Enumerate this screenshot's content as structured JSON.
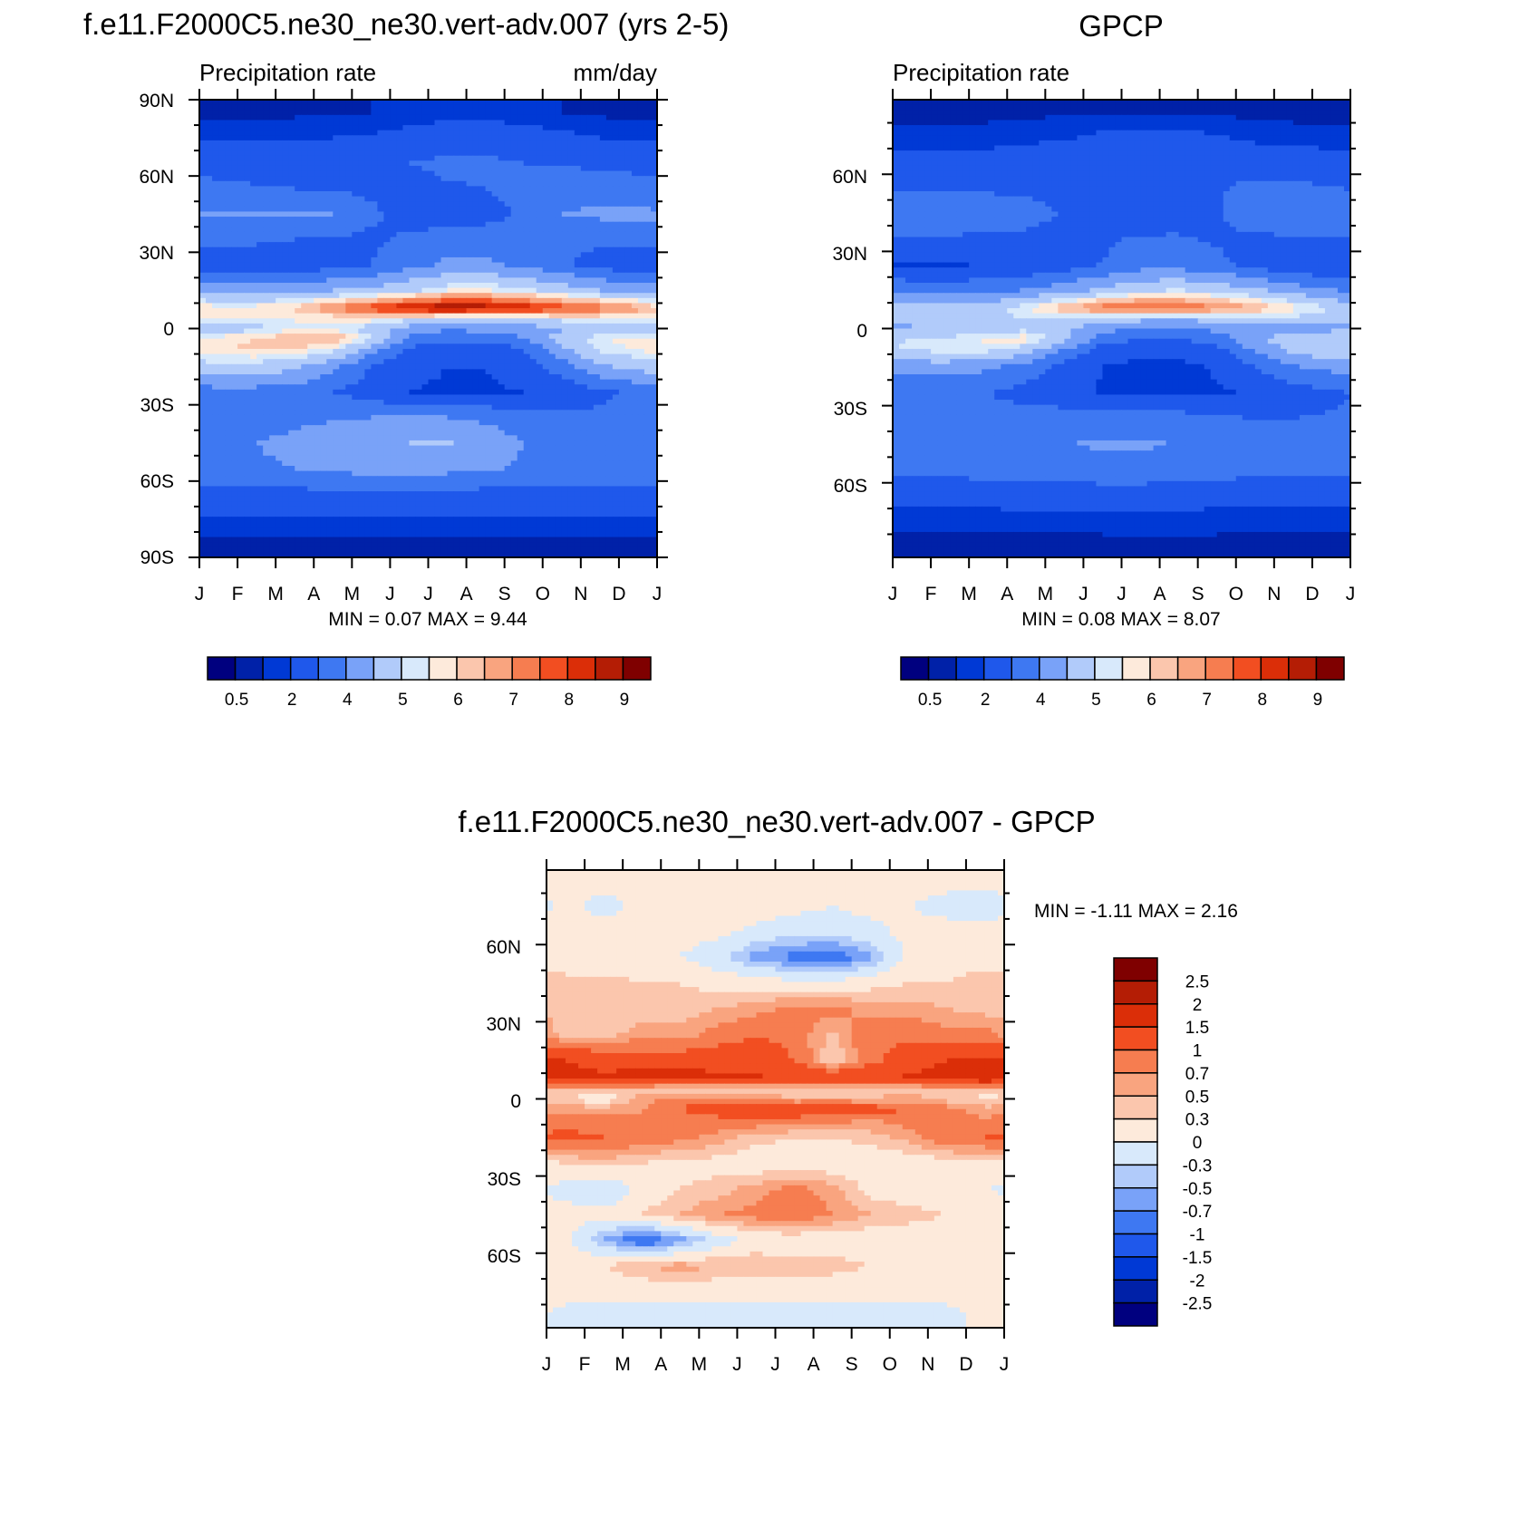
{
  "colors": {
    "precip_palette": [
      "#00007f",
      "#0021a8",
      "#0039d5",
      "#1f58eb",
      "#3e78f2",
      "#79a2f8",
      "#b1cbfa",
      "#d8e9fb",
      "#fdeadb",
      "#fbc6ad",
      "#f9a47f",
      "#f67d50",
      "#f24e21",
      "#db2e08",
      "#b41d05",
      "#7f0000"
    ],
    "diff_palette": [
      "#00007f",
      "#0021a8",
      "#0039d5",
      "#1f58eb",
      "#3e78f2",
      "#79a2f8",
      "#b1cbfa",
      "#d8e9fb",
      "#fdeadb",
      "#fbc6ad",
      "#f9a47f",
      "#f67d50",
      "#f24e21",
      "#db2e08",
      "#b41d05",
      "#7f0000"
    ]
  },
  "panels": {
    "model": {
      "title": "f.e11.F2000C5.ne30_ne30.vert-adv.007 (yrs 2-5)",
      "left_label": "Precipitation rate",
      "right_label": "mm/day",
      "y_ticks": [
        "90N",
        "60N",
        "30N",
        "0",
        "30S",
        "60S",
        "90S"
      ],
      "x_ticks": [
        "J",
        "F",
        "M",
        "A",
        "M",
        "J",
        "J",
        "A",
        "S",
        "O",
        "N",
        "D",
        "J"
      ],
      "min_max": "MIN =   0.07 MAX =   9.44",
      "colorbar_labels": [
        "0.5",
        "2",
        "4",
        "5",
        "6",
        "7",
        "8",
        "9"
      ]
    },
    "obs": {
      "title": "GPCP",
      "left_label": "Precipitation rate",
      "y_ticks": [
        "60N",
        "30N",
        "0",
        "30S",
        "60S"
      ],
      "x_ticks": [
        "J",
        "F",
        "M",
        "A",
        "M",
        "J",
        "J",
        "A",
        "S",
        "O",
        "N",
        "D",
        "J"
      ],
      "min_max": "MIN =   0.08 MAX =   8.07",
      "colorbar_labels": [
        "0.5",
        "2",
        "4",
        "5",
        "6",
        "7",
        "8",
        "9"
      ]
    },
    "diff": {
      "title": "f.e11.F2000C5.ne30_ne30.vert-adv.007 - GPCP",
      "y_ticks": [
        "60N",
        "30N",
        "0",
        "30S",
        "60S"
      ],
      "x_ticks": [
        "J",
        "F",
        "M",
        "A",
        "M",
        "J",
        "J",
        "A",
        "S",
        "O",
        "N",
        "D",
        "J"
      ],
      "min_max": "MIN =  -1.11 MAX =   2.16",
      "colorbar_labels": [
        "2.5",
        "2",
        "1.5",
        "1",
        "0.7",
        "0.5",
        "0.3",
        "0",
        "-0.3",
        "-0.5",
        "-0.7",
        "-1",
        "-1.5",
        "-2",
        "-2.5"
      ]
    }
  },
  "chart_data": [
    {
      "type": "heatmap",
      "title": "f.e11.F2000C5.ne30_ne30.vert-adv.007 (yrs 2-5)",
      "subtitle": "Precipitation rate",
      "units": "mm/day",
      "xlabel": "",
      "ylabel": "",
      "x": [
        "J",
        "F",
        "M",
        "A",
        "M",
        "J",
        "J",
        "A",
        "S",
        "O",
        "N",
        "D",
        "J"
      ],
      "ylim": [
        -90,
        90
      ],
      "min": 0.07,
      "max": 9.44,
      "levels": [
        0.2,
        0.5,
        1,
        2,
        3,
        4,
        5,
        5.5,
        6,
        6.5,
        7,
        7.5,
        8,
        8.5,
        9
      ],
      "note_levels_labeled": [
        "0.5",
        "2",
        "4",
        "5",
        "6",
        "7",
        "8",
        "9"
      ],
      "rows_lat": [
        85,
        75,
        65,
        55,
        45,
        35,
        25,
        15,
        8,
        4,
        0,
        -4,
        -8,
        -15,
        -25,
        -35,
        -45,
        -55,
        -65,
        -75,
        -85
      ],
      "values": [
        [
          0.3,
          0.3,
          0.4,
          0.4,
          0.5,
          0.6,
          0.7,
          0.7,
          0.6,
          0.5,
          0.4,
          0.3
        ],
        [
          0.9,
          0.9,
          0.9,
          1.0,
          1.1,
          1.3,
          1.6,
          1.6,
          1.4,
          1.2,
          1.0,
          0.9
        ],
        [
          1.6,
          1.5,
          1.5,
          1.6,
          1.8,
          2.0,
          2.2,
          2.2,
          2.0,
          1.9,
          1.8,
          1.7
        ],
        [
          2.2,
          2.1,
          2.0,
          1.9,
          1.8,
          1.7,
          1.9,
          2.0,
          2.3,
          2.6,
          2.6,
          2.4
        ],
        [
          3.1,
          3.1,
          3.2,
          3.0,
          2.2,
          1.5,
          1.4,
          1.6,
          2.2,
          3.0,
          3.2,
          3.2
        ],
        [
          2.4,
          2.2,
          2.0,
          1.9,
          1.8,
          2.2,
          2.5,
          2.6,
          2.4,
          2.1,
          2.2,
          2.4
        ],
        [
          1.2,
          1.2,
          1.4,
          1.6,
          2.0,
          2.7,
          3.2,
          3.2,
          2.8,
          2.2,
          1.6,
          1.3
        ],
        [
          3.5,
          3.6,
          3.7,
          4.0,
          4.3,
          4.8,
          5.5,
          5.6,
          5.2,
          4.6,
          4.0,
          3.7
        ],
        [
          5.6,
          5.8,
          6.2,
          7.2,
          8.0,
          8.8,
          9.2,
          9.0,
          8.6,
          8.0,
          7.5,
          6.8
        ],
        [
          5.5,
          5.4,
          5.5,
          5.6,
          5.8,
          5.3,
          4.8,
          4.7,
          5.0,
          5.4,
          5.5,
          5.5
        ],
        [
          4.4,
          4.8,
          5.5,
          5.4,
          4.6,
          3.5,
          3.2,
          3.3,
          3.5,
          3.8,
          4.0,
          4.2
        ],
        [
          5.8,
          6.0,
          6.5,
          6.7,
          5.0,
          2.8,
          2.2,
          2.3,
          3.0,
          4.5,
          5.5,
          5.7
        ],
        [
          5.9,
          6.2,
          6.0,
          5.3,
          3.5,
          1.8,
          1.4,
          1.4,
          2.0,
          3.8,
          5.2,
          5.6
        ],
        [
          4.8,
          4.6,
          4.2,
          3.2,
          2.0,
          1.2,
          1.0,
          1.0,
          1.3,
          2.5,
          3.8,
          4.4
        ],
        [
          2.7,
          2.6,
          2.5,
          2.0,
          1.5,
          1.0,
          0.9,
          0.9,
          1.0,
          1.3,
          1.8,
          2.2
        ],
        [
          2.6,
          2.6,
          2.8,
          2.9,
          3.0,
          3.0,
          3.0,
          2.8,
          2.4,
          2.2,
          2.2,
          2.3
        ],
        [
          2.9,
          3.0,
          3.2,
          3.5,
          3.7,
          4.0,
          4.1,
          3.6,
          3.0,
          2.7,
          2.7,
          2.8
        ],
        [
          2.8,
          2.9,
          3.0,
          3.2,
          3.4,
          3.4,
          3.3,
          3.1,
          2.9,
          2.8,
          2.7,
          2.7
        ],
        [
          1.7,
          1.7,
          1.7,
          1.8,
          1.8,
          1.8,
          1.8,
          1.7,
          1.7,
          1.6,
          1.6,
          1.6
        ],
        [
          0.9,
          0.9,
          0.9,
          0.9,
          0.9,
          0.9,
          0.9,
          0.9,
          0.9,
          0.9,
          0.9,
          0.9
        ],
        [
          0.3,
          0.3,
          0.3,
          0.3,
          0.3,
          0.3,
          0.3,
          0.3,
          0.3,
          0.3,
          0.3,
          0.3
        ]
      ]
    },
    {
      "type": "heatmap",
      "title": "GPCP",
      "subtitle": "Precipitation rate",
      "xlabel": "",
      "ylabel": "",
      "x": [
        "J",
        "F",
        "M",
        "A",
        "M",
        "J",
        "J",
        "A",
        "S",
        "O",
        "N",
        "D",
        "J"
      ],
      "ylim": [
        -89,
        89
      ],
      "min": 0.08,
      "max": 8.07,
      "levels": [
        0.2,
        0.5,
        1,
        2,
        3,
        4,
        5,
        5.5,
        6,
        6.5,
        7,
        7.5,
        8,
        8.5,
        9
      ],
      "note_levels_labeled": [
        "0.5",
        "2",
        "4",
        "5",
        "6",
        "7",
        "8",
        "9"
      ],
      "rows_lat": [
        85,
        75,
        65,
        55,
        45,
        35,
        25,
        15,
        8,
        4,
        0,
        -4,
        -8,
        -15,
        -25,
        -35,
        -45,
        -55,
        -65,
        -75,
        -85
      ],
      "values": [
        [
          0.3,
          0.3,
          0.3,
          0.3,
          0.4,
          0.4,
          0.4,
          0.4,
          0.4,
          0.3,
          0.3,
          0.3
        ],
        [
          0.7,
          0.7,
          0.7,
          0.8,
          0.9,
          1.1,
          1.2,
          1.2,
          1.0,
          0.8,
          0.7,
          0.7
        ],
        [
          1.3,
          1.3,
          1.3,
          1.4,
          1.5,
          1.6,
          1.7,
          1.7,
          1.6,
          1.5,
          1.4,
          1.3
        ],
        [
          1.8,
          1.8,
          1.8,
          1.8,
          1.6,
          1.4,
          1.4,
          1.6,
          1.9,
          2.2,
          2.2,
          2.0
        ],
        [
          2.8,
          2.7,
          2.6,
          2.4,
          1.9,
          1.5,
          1.4,
          1.5,
          1.9,
          2.6,
          2.9,
          2.9
        ],
        [
          2.0,
          1.9,
          1.8,
          1.8,
          1.7,
          1.9,
          2.1,
          2.1,
          1.9,
          1.8,
          1.9,
          2.0
        ],
        [
          0.9,
          0.9,
          1.0,
          1.2,
          1.5,
          2.0,
          2.5,
          2.5,
          2.2,
          1.6,
          1.2,
          1.0
        ],
        [
          2.6,
          2.6,
          2.7,
          3.0,
          3.5,
          4.2,
          4.8,
          5.0,
          4.7,
          4.1,
          3.5,
          3.0
        ],
        [
          4.2,
          4.3,
          4.6,
          5.5,
          6.5,
          7.4,
          7.8,
          7.6,
          7.2,
          6.6,
          5.8,
          4.9
        ],
        [
          4.6,
          4.5,
          4.7,
          5.0,
          5.2,
          4.8,
          4.3,
          4.2,
          4.4,
          4.7,
          4.8,
          4.7
        ],
        [
          3.8,
          4.1,
          4.6,
          4.8,
          4.2,
          3.3,
          3.0,
          3.0,
          3.2,
          3.4,
          3.6,
          3.7
        ],
        [
          5.0,
          5.2,
          5.6,
          5.8,
          4.4,
          2.6,
          2.0,
          2.0,
          2.6,
          3.8,
          4.6,
          4.9
        ],
        [
          5.1,
          5.4,
          5.3,
          4.6,
          3.0,
          1.6,
          1.2,
          1.2,
          1.7,
          3.2,
          4.4,
          4.8
        ],
        [
          3.5,
          3.4,
          3.2,
          2.5,
          1.6,
          1.0,
          0.8,
          0.8,
          1.1,
          2.0,
          2.9,
          3.3
        ],
        [
          2.2,
          2.1,
          2.0,
          1.7,
          1.3,
          0.9,
          0.8,
          0.8,
          0.9,
          1.1,
          1.5,
          1.8
        ],
        [
          2.2,
          2.2,
          2.3,
          2.4,
          2.5,
          2.5,
          2.5,
          2.4,
          2.1,
          2.0,
          2.0,
          2.1
        ],
        [
          2.3,
          2.4,
          2.6,
          2.8,
          3.0,
          3.1,
          3.1,
          3.0,
          2.7,
          2.4,
          2.3,
          2.3
        ],
        [
          2.2,
          2.3,
          2.4,
          2.5,
          2.6,
          2.7,
          2.7,
          2.6,
          2.4,
          2.3,
          2.2,
          2.2
        ],
        [
          1.3,
          1.3,
          1.3,
          1.4,
          1.4,
          1.4,
          1.4,
          1.4,
          1.3,
          1.3,
          1.3,
          1.3
        ],
        [
          0.7,
          0.7,
          0.7,
          0.7,
          0.7,
          0.7,
          0.7,
          0.7,
          0.7,
          0.7,
          0.7,
          0.7
        ],
        [
          0.3,
          0.3,
          0.3,
          0.3,
          0.3,
          0.3,
          0.4,
          0.4,
          0.3,
          0.3,
          0.3,
          0.3
        ]
      ]
    },
    {
      "type": "heatmap",
      "title": "f.e11.F2000C5.ne30_ne30.vert-adv.007 - GPCP",
      "xlabel": "",
      "ylabel": "",
      "x": [
        "J",
        "F",
        "M",
        "A",
        "M",
        "J",
        "J",
        "A",
        "S",
        "O",
        "N",
        "D",
        "J"
      ],
      "ylim": [
        -89,
        89
      ],
      "min": -1.11,
      "max": 2.16,
      "levels": [
        -2.5,
        -2,
        -1.5,
        -1,
        -0.7,
        -0.5,
        -0.3,
        0,
        0.3,
        0.5,
        0.7,
        1,
        1.5,
        2,
        2.5
      ],
      "rows_lat": [
        85,
        75,
        65,
        55,
        45,
        35,
        25,
        15,
        8,
        4,
        0,
        -4,
        -8,
        -15,
        -25,
        -35,
        -45,
        -55,
        -65,
        -75,
        -85
      ],
      "values": [
        [
          0.1,
          0.1,
          0.1,
          0.1,
          0.2,
          0.2,
          0.1,
          0.1,
          0.1,
          0.1,
          0.1,
          0.1
        ],
        [
          0.1,
          -0.1,
          0.1,
          0.1,
          0.1,
          0.2,
          0.1,
          0.0,
          0.1,
          0.0,
          -0.1,
          -0.2
        ],
        [
          0.1,
          0.1,
          0.1,
          0.1,
          0.1,
          -0.1,
          -0.2,
          -0.2,
          -0.1,
          0.1,
          0.1,
          0.1
        ],
        [
          0.1,
          0.1,
          0.1,
          0.0,
          -0.2,
          -0.6,
          -0.8,
          -0.9,
          -0.6,
          0.1,
          0.1,
          0.1
        ],
        [
          0.4,
          0.4,
          0.3,
          0.3,
          0.2,
          0.2,
          0.1,
          0.1,
          0.2,
          0.3,
          0.3,
          0.5
        ],
        [
          0.5,
          0.4,
          0.4,
          0.4,
          0.5,
          0.6,
          0.8,
          0.8,
          0.6,
          0.6,
          0.5,
          0.4
        ],
        [
          0.4,
          0.4,
          0.6,
          0.6,
          0.8,
          1.0,
          0.9,
          0.4,
          1.0,
          0.9,
          0.8,
          0.8
        ],
        [
          1.5,
          1.3,
          1.2,
          1.2,
          1.3,
          1.2,
          1.0,
          0.3,
          0.9,
          1.2,
          1.5,
          1.6
        ],
        [
          1.7,
          1.6,
          1.8,
          1.8,
          1.6,
          1.6,
          1.4,
          1.4,
          1.4,
          1.6,
          1.8,
          1.9
        ],
        [
          0.5,
          0.5,
          0.4,
          0.3,
          0.3,
          0.4,
          0.4,
          0.4,
          0.4,
          0.4,
          0.4,
          0.5
        ],
        [
          0.3,
          0.1,
          0.6,
          0.8,
          0.8,
          0.6,
          0.5,
          0.5,
          0.5,
          0.6,
          0.4,
          0.2
        ],
        [
          0.6,
          0.6,
          0.7,
          1.0,
          1.3,
          1.4,
          1.3,
          1.4,
          1.2,
          1.0,
          0.8,
          0.6
        ],
        [
          0.9,
          0.8,
          0.7,
          0.8,
          0.9,
          0.9,
          0.9,
          0.8,
          0.7,
          0.8,
          0.8,
          0.7
        ],
        [
          1.1,
          1.0,
          0.9,
          0.8,
          0.6,
          0.4,
          0.3,
          0.3,
          0.4,
          0.6,
          0.9,
          1.0
        ],
        [
          0.3,
          0.4,
          0.3,
          0.2,
          0.2,
          0.1,
          0.1,
          0.1,
          0.1,
          0.1,
          0.2,
          0.2
        ],
        [
          -0.1,
          -0.3,
          0.1,
          0.3,
          0.4,
          0.6,
          0.8,
          0.6,
          0.2,
          0.1,
          0.1,
          0.0
        ],
        [
          0.1,
          0.1,
          0.3,
          0.5,
          0.7,
          0.8,
          0.9,
          0.7,
          0.5,
          0.4,
          0.3,
          0.2
        ],
        [
          0.1,
          -0.5,
          -1.0,
          -0.6,
          -0.2,
          0.1,
          0.1,
          0.1,
          0.1,
          0.1,
          0.1,
          0.1
        ],
        [
          0.2,
          0.3,
          0.5,
          0.6,
          0.5,
          0.5,
          0.4,
          0.4,
          0.3,
          0.3,
          0.2,
          0.2
        ],
        [
          0.1,
          0.1,
          0.1,
          0.1,
          0.1,
          0.1,
          0.1,
          0.1,
          0.1,
          0.1,
          0.1,
          0.1
        ],
        [
          -0.1,
          -0.1,
          -0.1,
          -0.1,
          -0.1,
          -0.1,
          -0.1,
          -0.1,
          -0.1,
          -0.1,
          -0.1,
          0.1
        ]
      ]
    }
  ]
}
